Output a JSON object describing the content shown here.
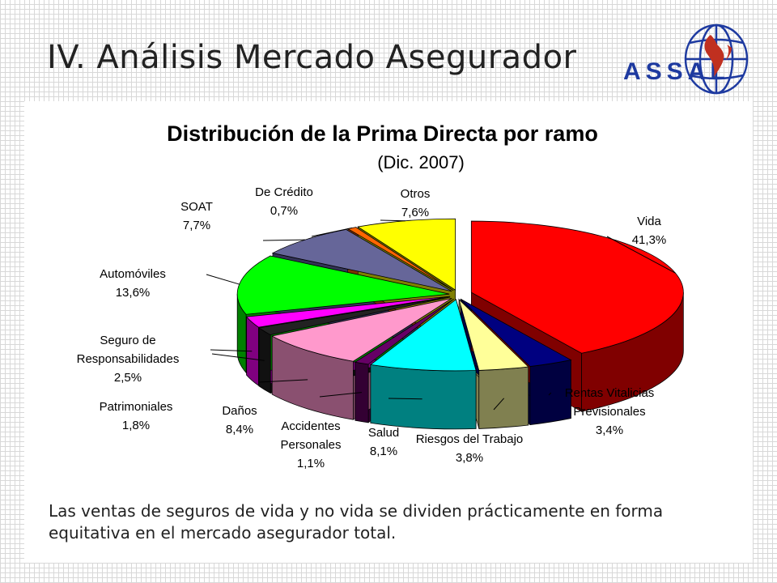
{
  "slide": {
    "title": "IV. Análisis Mercado Asegurador",
    "caption": "Las ventas de seguros de vida y no vida se dividen prácticamente en forma equitativa en el mercado asegurador total.",
    "logo_text": "ASSAL"
  },
  "chart_data": {
    "type": "pie",
    "title": "Distribución de la Prima Directa por ramo",
    "subtitle": "(Dic. 2007)",
    "slices": [
      {
        "label": "Vida",
        "value": 41.3,
        "value_label": "41,3%",
        "color": "#ff0000",
        "side": "#800000"
      },
      {
        "label": "Rentas Vitalicias Previsionales",
        "value": 3.4,
        "value_label": "3,4%",
        "color": "#000080",
        "side": "#000040"
      },
      {
        "label": "Riesgos del Trabajo",
        "value": 3.8,
        "value_label": "3,8%",
        "color": "#ffff99",
        "side": "#808050"
      },
      {
        "label": "Salud",
        "value": 8.1,
        "value_label": "8,1%",
        "color": "#00ffff",
        "side": "#008080"
      },
      {
        "label": "Accidentes Personales",
        "value": 1.1,
        "value_label": "1,1%",
        "color": "#660066",
        "side": "#330033"
      },
      {
        "label": "Daños",
        "value": 8.4,
        "value_label": "8,4%",
        "color": "#ff99cc",
        "side": "#8a5070"
      },
      {
        "label": "Patrimoniales",
        "value": 1.8,
        "value_label": "1,8%",
        "color": "#222222",
        "side": "#111111"
      },
      {
        "label": "Seguro de Responsabilidades",
        "value": 2.5,
        "value_label": "2,5%",
        "color": "#ff00ff",
        "side": "#800080"
      },
      {
        "label": "Automóviles",
        "value": 13.6,
        "value_label": "13,6%",
        "color": "#00ff00",
        "side": "#008000"
      },
      {
        "label": "SOAT",
        "value": 7.7,
        "value_label": "7,7%",
        "color": "#666699",
        "side": "#333355"
      },
      {
        "label": "De Crédito",
        "value": 0.7,
        "value_label": "0,7%",
        "color": "#ff6600",
        "side": "#803300"
      },
      {
        "label": "Otros",
        "value": 7.6,
        "value_label": "7,6%",
        "color": "#ffff00",
        "side": "#808000"
      }
    ],
    "legend": "none"
  }
}
